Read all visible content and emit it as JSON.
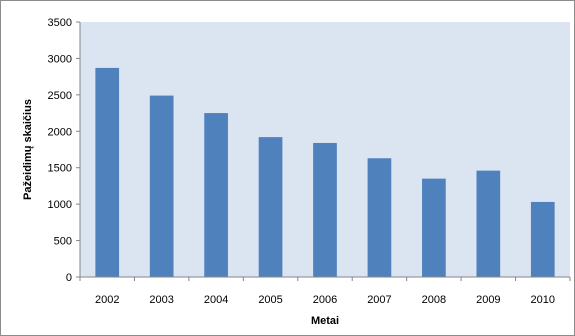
{
  "chart_data": {
    "type": "bar",
    "title": "",
    "xlabel": "Metai",
    "ylabel": "Pažeidimų skaičius",
    "categories": [
      "2002",
      "2003",
      "2004",
      "2005",
      "2006",
      "2007",
      "2008",
      "2009",
      "2010"
    ],
    "values": [
      2870,
      2490,
      2250,
      1920,
      1840,
      1630,
      1350,
      1460,
      1030
    ],
    "ylim": [
      0,
      3500
    ],
    "yticks": [
      "0",
      "500",
      "1000",
      "1500",
      "2000",
      "2500",
      "3000",
      "3500"
    ],
    "grid": false,
    "legend": "none"
  },
  "colors": {
    "plot_background": "#dbe5f1",
    "bar": "#4f81bd",
    "axis": "#868686"
  }
}
